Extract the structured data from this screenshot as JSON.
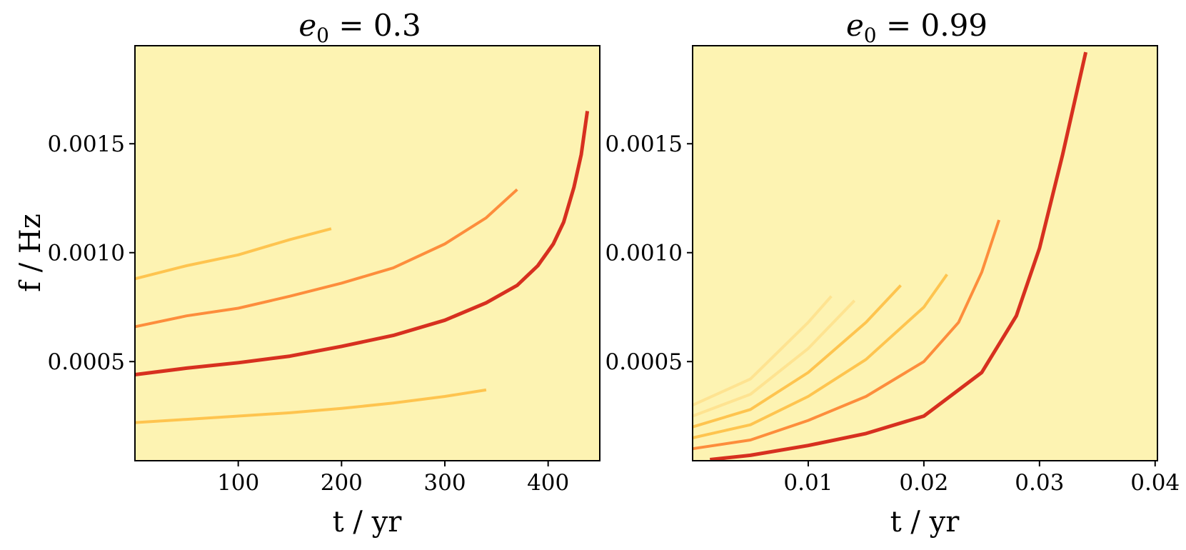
{
  "colors": {
    "background": "#fdf3b2",
    "harmonic_strong": "#d7301f",
    "harmonic_medium": "#fd8d3c",
    "harmonic_weak": "#fec44f",
    "harmonic_faint": "#fee391"
  },
  "chart_data": [
    {
      "type": "heatmap",
      "title": {
        "symbol": "e",
        "subscript": "0",
        "rest": " = 0.3"
      },
      "xlabel": "t / yr",
      "ylabel": "f / Hz",
      "xlim": [
        0,
        450
      ],
      "ylim": [
        4.5e-05,
        0.00195
      ],
      "xticks": [
        100,
        200,
        300,
        400
      ],
      "xtick_labels": [
        "100",
        "200",
        "300",
        "400"
      ],
      "yticks": [
        0.0005,
        0.001,
        0.0015
      ],
      "ytick_labels": [
        "0.0005",
        "0.0010",
        "0.0015"
      ],
      "colormap": "YlOrRd",
      "grid": false,
      "series": [
        {
          "harmonic": 1,
          "intensity": 0.35,
          "t": [
            0,
            50,
            100,
            150,
            200,
            250,
            300,
            340
          ],
          "f": [
            0.00022,
            0.000235,
            0.00025,
            0.000265,
            0.000285,
            0.00031,
            0.00034,
            0.00037
          ]
        },
        {
          "harmonic": 2,
          "intensity": 1.0,
          "t": [
            0,
            50,
            100,
            150,
            200,
            250,
            300,
            340,
            370,
            390,
            405,
            415,
            425,
            432,
            438
          ],
          "f": [
            0.00044,
            0.00047,
            0.000495,
            0.000525,
            0.00057,
            0.00062,
            0.00069,
            0.00077,
            0.00085,
            0.00094,
            0.00104,
            0.00114,
            0.0013,
            0.00145,
            0.00165
          ]
        },
        {
          "harmonic": 3,
          "intensity": 0.65,
          "t": [
            0,
            50,
            100,
            150,
            200,
            250,
            300,
            340,
            370
          ],
          "f": [
            0.00066,
            0.00071,
            0.000745,
            0.0008,
            0.00086,
            0.00093,
            0.00104,
            0.00116,
            0.00129
          ]
        },
        {
          "harmonic": 4,
          "intensity": 0.25,
          "t": [
            0,
            50,
            100,
            150,
            190
          ],
          "f": [
            0.00088,
            0.00094,
            0.00099,
            0.00106,
            0.00111
          ]
        }
      ]
    },
    {
      "type": "heatmap",
      "title": {
        "symbol": "e",
        "subscript": "0",
        "rest": " = 0.99"
      },
      "xlabel": "t / yr",
      "ylabel": "",
      "xlim": [
        0,
        0.0402
      ],
      "ylim": [
        4.5e-05,
        0.00195
      ],
      "xticks": [
        0.01,
        0.02,
        0.03,
        0.04
      ],
      "xtick_labels": [
        "0.01",
        "0.02",
        "0.03",
        "0.04"
      ],
      "yticks": [
        0.0005,
        0.001,
        0.0015
      ],
      "ytick_labels": [
        "0.0005",
        "0.0010",
        "0.0015"
      ],
      "colormap": "YlOrRd",
      "grid": false,
      "series": [
        {
          "harmonic": 1,
          "intensity": 1.0,
          "t": [
            0.0015,
            0.005,
            0.01,
            0.015,
            0.02,
            0.025,
            0.028,
            0.03,
            0.032,
            0.034
          ],
          "f": [
            5e-05,
            7e-05,
            0.000115,
            0.00017,
            0.00025,
            0.00045,
            0.00071,
            0.00102,
            0.00145,
            0.00192
          ]
        },
        {
          "harmonic": 2,
          "intensity": 0.65,
          "t": [
            0,
            0.005,
            0.01,
            0.015,
            0.02,
            0.023,
            0.025,
            0.0265
          ],
          "f": [
            0.0001,
            0.00014,
            0.00023,
            0.00034,
            0.0005,
            0.00068,
            0.00091,
            0.00115
          ]
        },
        {
          "harmonic": 3,
          "intensity": 0.4,
          "t": [
            0,
            0.005,
            0.01,
            0.015,
            0.02,
            0.022
          ],
          "f": [
            0.00015,
            0.00021,
            0.00034,
            0.00051,
            0.00075,
            0.0009
          ]
        },
        {
          "harmonic": 4,
          "intensity": 0.25,
          "t": [
            0,
            0.005,
            0.01,
            0.015,
            0.018
          ],
          "f": [
            0.0002,
            0.00028,
            0.00045,
            0.00068,
            0.00085
          ]
        },
        {
          "harmonic": 5,
          "intensity": 0.15,
          "t": [
            0,
            0.005,
            0.01,
            0.014
          ],
          "f": [
            0.00025,
            0.00035,
            0.00056,
            0.00078
          ]
        },
        {
          "harmonic": 6,
          "intensity": 0.1,
          "t": [
            0,
            0.005,
            0.01,
            0.012
          ],
          "f": [
            0.0003,
            0.00042,
            0.00068,
            0.0008
          ]
        }
      ]
    }
  ]
}
